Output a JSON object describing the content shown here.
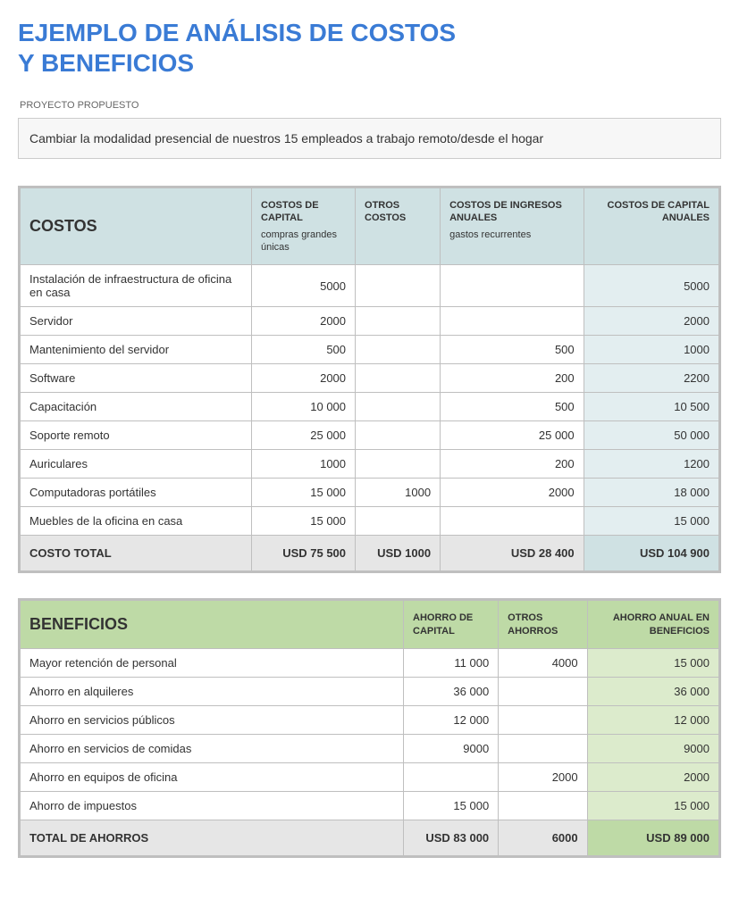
{
  "title_line1": "EJEMPLO DE ANÁLISIS DE COSTOS",
  "title_line2": "Y BENEFICIOS",
  "project_label": "PROYECTO PROPUESTO",
  "project_desc": "Cambiar la modalidad presencial de nuestros 15 empleados a trabajo remoto/desde el hogar",
  "costs": {
    "heading": "COSTOS",
    "col1_title": "COSTOS DE CAPITAL",
    "col1_sub": "compras grandes únicas",
    "col2_title": "OTROS COSTOS",
    "col3_title": "COSTOS DE INGRESOS ANUALES",
    "col3_sub": "gastos recurrentes",
    "col4_title": "COSTOS DE CAPITAL ANUALES",
    "rows": [
      {
        "label": "Instalación de infraestructura de oficina en casa",
        "c1": "5000",
        "c2": "",
        "c3": "",
        "c4": "5000"
      },
      {
        "label": "Servidor",
        "c1": "2000",
        "c2": "",
        "c3": "",
        "c4": "2000"
      },
      {
        "label": "Mantenimiento del servidor",
        "c1": "500",
        "c2": "",
        "c3": "500",
        "c4": "1000"
      },
      {
        "label": "Software",
        "c1": "2000",
        "c2": "",
        "c3": "200",
        "c4": "2200"
      },
      {
        "label": "Capacitación",
        "c1": "10 000",
        "c2": "",
        "c3": "500",
        "c4": "10 500"
      },
      {
        "label": "Soporte remoto",
        "c1": "25 000",
        "c2": "",
        "c3": "25 000",
        "c4": "50 000"
      },
      {
        "label": "Auriculares",
        "c1": "1000",
        "c2": "",
        "c3": "200",
        "c4": "1200"
      },
      {
        "label": "Computadoras portátiles",
        "c1": "15 000",
        "c2": "1000",
        "c3": "2000",
        "c4": "18 000"
      },
      {
        "label": "Muebles de la oficina en casa",
        "c1": "15 000",
        "c2": "",
        "c3": "",
        "c4": "15 000"
      }
    ],
    "total_label": "COSTO TOTAL",
    "total_c1": "USD 75 500",
    "total_c2": "USD 1000",
    "total_c3": "USD 28 400",
    "total_c4": "USD 104 900"
  },
  "benefits": {
    "heading": "BENEFICIOS",
    "col1_title": "AHORRO DE CAPITAL",
    "col2_title": "OTROS AHORROS",
    "col3_title": "AHORRO ANUAL EN BENEFICIOS",
    "rows": [
      {
        "label": "Mayor retención de personal",
        "c1": "11 000",
        "c2": "4000",
        "c3": "15 000"
      },
      {
        "label": "Ahorro en alquileres",
        "c1": "36 000",
        "c2": "",
        "c3": "36 000"
      },
      {
        "label": "Ahorro en servicios públicos",
        "c1": "12 000",
        "c2": "",
        "c3": "12 000"
      },
      {
        "label": "Ahorro en servicios de comidas",
        "c1": "9000",
        "c2": "",
        "c3": "9000"
      },
      {
        "label": "Ahorro en equipos de oficina",
        "c1": "",
        "c2": "2000",
        "c3": "2000"
      },
      {
        "label": "Ahorro de impuestos",
        "c1": "15 000",
        "c2": "",
        "c3": "15 000"
      }
    ],
    "total_label": "TOTAL DE AHORROS",
    "total_c1": "USD 83 000",
    "total_c2": "6000",
    "total_c3": "USD 89 000"
  },
  "colors": {
    "title": "#3a7bd5",
    "border": "#bfbfbf",
    "cost_header": "#cfe1e3",
    "cost_annual": "#e3eef0",
    "benefit_header": "#bedaa6",
    "benefit_annual": "#dcebcc",
    "total_bg": "#e6e6e6"
  }
}
